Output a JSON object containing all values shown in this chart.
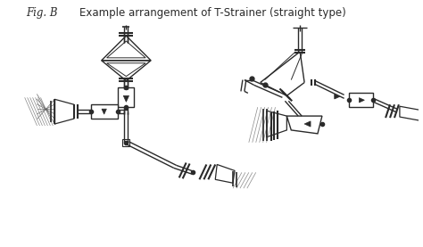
{
  "title_left": "Fig. B",
  "title_right": "    Example arrangement of T-Strainer (straight type)",
  "bg_color": "#ffffff",
  "line_color": "#2a2a2a",
  "title_fontsize": 8.5,
  "fig_width": 4.74,
  "fig_height": 2.77,
  "dpi": 100
}
